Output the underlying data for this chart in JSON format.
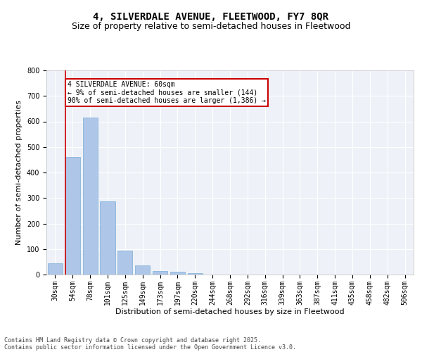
{
  "title1": "4, SILVERDALE AVENUE, FLEETWOOD, FY7 8QR",
  "title2": "Size of property relative to semi-detached houses in Fleetwood",
  "xlabel": "Distribution of semi-detached houses by size in Fleetwood",
  "ylabel": "Number of semi-detached properties",
  "categories": [
    "30sqm",
    "54sqm",
    "78sqm",
    "101sqm",
    "125sqm",
    "149sqm",
    "173sqm",
    "197sqm",
    "220sqm",
    "244sqm",
    "268sqm",
    "292sqm",
    "316sqm",
    "339sqm",
    "363sqm",
    "387sqm",
    "411sqm",
    "435sqm",
    "458sqm",
    "482sqm",
    "506sqm"
  ],
  "values": [
    45,
    460,
    615,
    288,
    93,
    36,
    14,
    10,
    5,
    0,
    0,
    0,
    0,
    0,
    0,
    0,
    0,
    0,
    0,
    0,
    0
  ],
  "bar_color": "#aec6e8",
  "bar_edge_color": "#7aaed6",
  "highlight_line_color": "#cc0000",
  "annotation_title": "4 SILVERDALE AVENUE: 60sqm",
  "annotation_line1": "← 9% of semi-detached houses are smaller (144)",
  "annotation_line2": "90% of semi-detached houses are larger (1,386) →",
  "annotation_box_color": "#cc0000",
  "ylim": [
    0,
    800
  ],
  "yticks": [
    0,
    100,
    200,
    300,
    400,
    500,
    600,
    700,
    800
  ],
  "bg_color": "#eef2f8",
  "grid_color": "#ffffff",
  "footer1": "Contains HM Land Registry data © Crown copyright and database right 2025.",
  "footer2": "Contains public sector information licensed under the Open Government Licence v3.0.",
  "title_fontsize": 10,
  "subtitle_fontsize": 9,
  "axis_label_fontsize": 8,
  "tick_fontsize": 7,
  "footer_fontsize": 6
}
